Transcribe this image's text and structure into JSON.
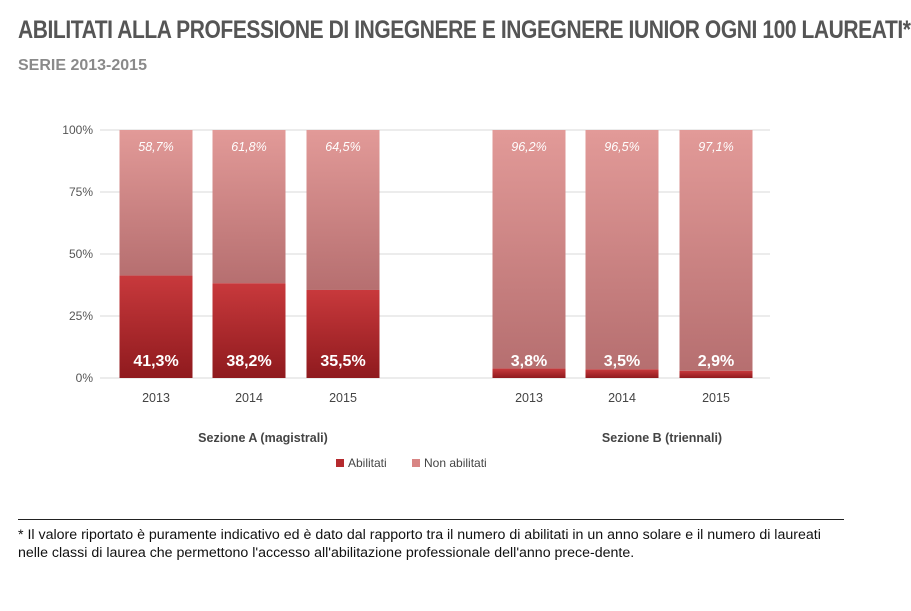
{
  "header": {
    "title": "ABILITATI ALLA PROFESSIONE DI INGEGNERE E INGEGNERE IUNIOR OGNI 100 LAUREATI*",
    "subtitle": "SERIE 2013-2015"
  },
  "footnote": "* Il valore riportato è puramente indicativo ed è dato dal rapporto tra il numero di abilitati in un anno solare e il numero di laureati nelle classi di laurea che permettono l'accesso all'abilitazione professionale dell'anno prece-dente.",
  "chart_data": {
    "type": "bar",
    "stacked": true,
    "ylim": [
      0,
      100
    ],
    "yticks": [
      "0%",
      "25%",
      "50%",
      "75%",
      "100%"
    ],
    "grid": true,
    "legend_position": "bottom",
    "groups": [
      {
        "label": "Sezione A (magistrali)",
        "categories": [
          "2013",
          "2014",
          "2015"
        ],
        "abilitati": [
          41.3,
          38.2,
          35.5
        ],
        "non_abilitati": [
          58.7,
          61.8,
          64.5
        ],
        "abilitati_labels": [
          "41,3%",
          "38,2%",
          "35,5%"
        ],
        "non_abilitati_labels": [
          "58,7%",
          "61,8%",
          "64,5%"
        ]
      },
      {
        "label": "Sezione B (triennali)",
        "categories": [
          "2013",
          "2014",
          "2015"
        ],
        "abilitati": [
          3.8,
          3.5,
          2.9
        ],
        "non_abilitati": [
          96.2,
          96.5,
          97.1
        ],
        "abilitati_labels": [
          "3,8%",
          "3,5%",
          "2,9%"
        ],
        "non_abilitati_labels": [
          "96,2%",
          "96,5%",
          "97,1%"
        ]
      }
    ],
    "series": [
      {
        "name": "Abilitati",
        "color": "#b52a2e"
      },
      {
        "name": "Non abilitati",
        "color": "#d88584"
      }
    ]
  }
}
